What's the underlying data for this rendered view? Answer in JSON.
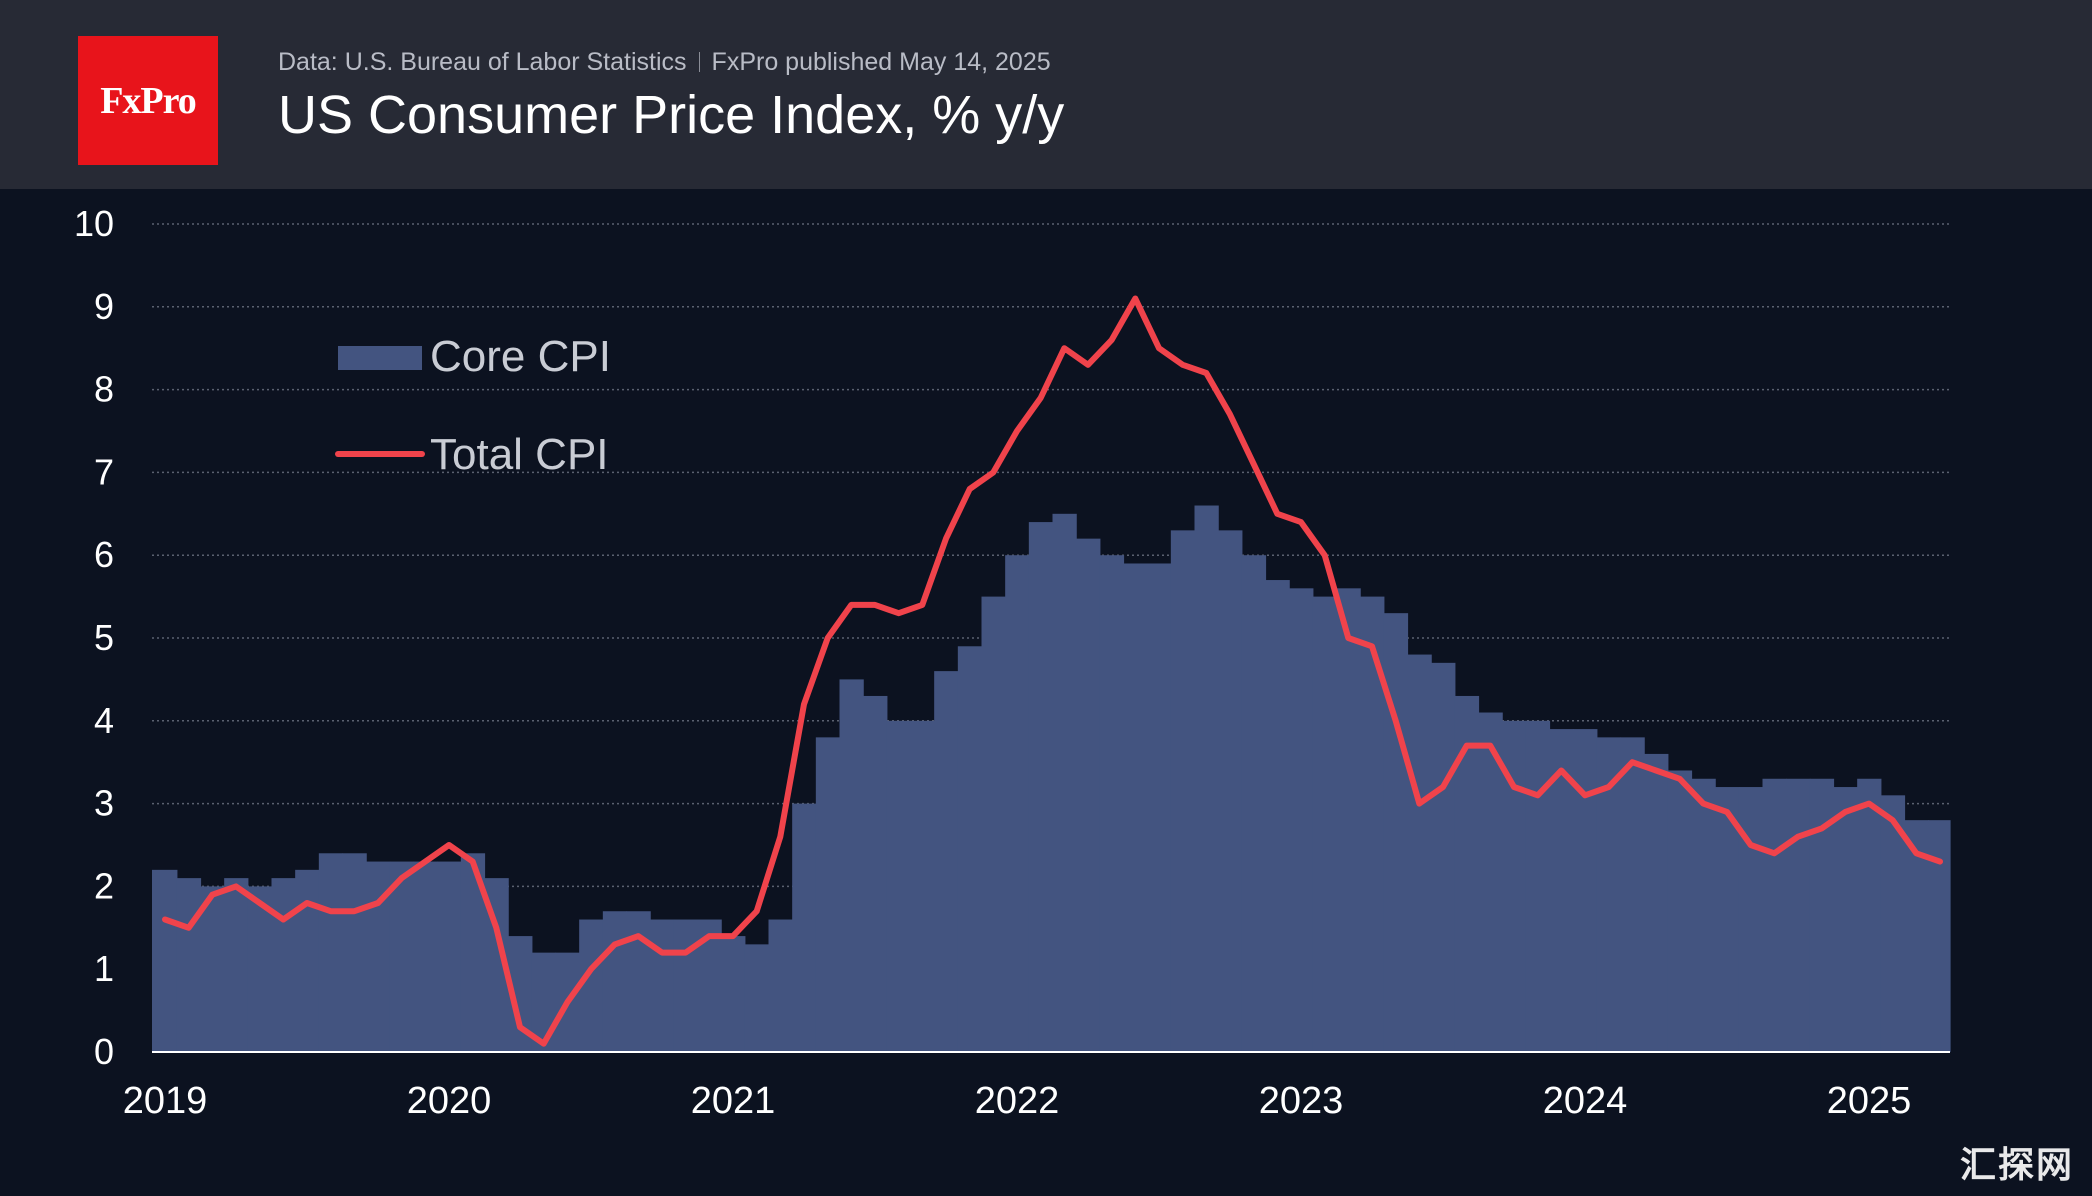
{
  "header": {
    "logo_text": "FxPro",
    "source": "Data: U.S. Bureau of Labor Statistics",
    "published": "FxPro published May 14, 2025",
    "title": "US Consumer Price Index, % y/y"
  },
  "watermark": "汇探网",
  "colors": {
    "background": "#0c1220",
    "header_bg": "#272a35",
    "logo_bg": "#e8141b",
    "core_fill": "#435480",
    "total_line": "#f0434b",
    "grid": "#5b6170",
    "text": "#ffffff"
  },
  "chart_data": {
    "type": "area",
    "start": "2019-01",
    "ylim": [
      0,
      10
    ],
    "yticks": [
      "0",
      "1",
      "2",
      "3",
      "4",
      "5",
      "6",
      "7",
      "8",
      "9",
      "10"
    ],
    "xticks": [
      "2019",
      "2020",
      "2021",
      "2022",
      "2023",
      "2024",
      "2025"
    ],
    "grid": true,
    "legend_position": "top-left",
    "series": [
      {
        "name": "Core CPI",
        "style": "step-area",
        "values": [
          2.2,
          2.1,
          2.0,
          2.1,
          2.0,
          2.1,
          2.2,
          2.4,
          2.4,
          2.3,
          2.3,
          2.3,
          2.3,
          2.4,
          2.1,
          1.4,
          1.2,
          1.2,
          1.6,
          1.7,
          1.7,
          1.6,
          1.6,
          1.6,
          1.4,
          1.3,
          1.6,
          3.0,
          3.8,
          4.5,
          4.3,
          4.0,
          4.0,
          4.6,
          4.9,
          5.5,
          6.0,
          6.4,
          6.5,
          6.2,
          6.0,
          5.9,
          5.9,
          6.3,
          6.6,
          6.3,
          6.0,
          5.7,
          5.6,
          5.5,
          5.6,
          5.5,
          5.3,
          4.8,
          4.7,
          4.3,
          4.1,
          4.0,
          4.0,
          3.9,
          3.9,
          3.8,
          3.8,
          3.6,
          3.4,
          3.3,
          3.2,
          3.2,
          3.3,
          3.3,
          3.3,
          3.2,
          3.3,
          3.1,
          2.8,
          2.8
        ]
      },
      {
        "name": "Total CPI",
        "style": "line",
        "values": [
          1.6,
          1.5,
          1.9,
          2.0,
          1.8,
          1.6,
          1.8,
          1.7,
          1.7,
          1.8,
          2.1,
          2.3,
          2.5,
          2.3,
          1.5,
          0.3,
          0.1,
          0.6,
          1.0,
          1.3,
          1.4,
          1.2,
          1.2,
          1.4,
          1.4,
          1.7,
          2.6,
          4.2,
          5.0,
          5.4,
          5.4,
          5.3,
          5.4,
          6.2,
          6.8,
          7.0,
          7.5,
          7.9,
          8.5,
          8.3,
          8.6,
          9.1,
          8.5,
          8.3,
          8.2,
          7.7,
          7.1,
          6.5,
          6.4,
          6.0,
          5.0,
          4.9,
          4.0,
          3.0,
          3.2,
          3.7,
          3.7,
          3.2,
          3.1,
          3.4,
          3.1,
          3.2,
          3.5,
          3.4,
          3.3,
          3.0,
          2.9,
          2.5,
          2.4,
          2.6,
          2.7,
          2.9,
          3.0,
          2.8,
          2.4,
          2.3
        ]
      }
    ]
  }
}
